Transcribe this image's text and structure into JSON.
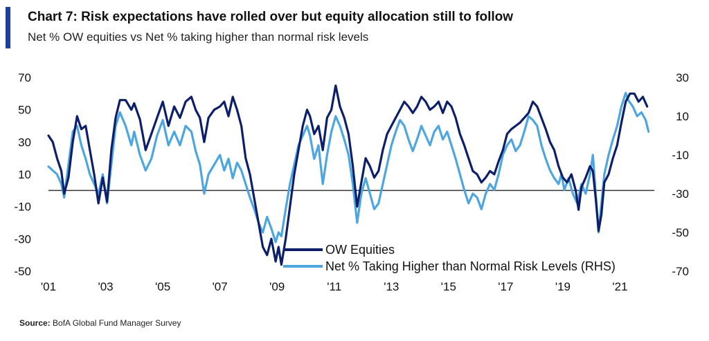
{
  "title": "Chart 7: Risk expectations have rolled over but equity allocation still to follow",
  "subtitle": "Net % OW equities vs Net % taking higher than normal risk levels",
  "source_label": "Source:",
  "source_text": "BofA Global Fund Manager Survey",
  "colors": {
    "accent": "#1f3f9a",
    "ow_equities": "#0d1f6b",
    "risk_levels": "#4da6e0",
    "zero_line": "#333333"
  },
  "chart_data": {
    "type": "line",
    "x_tick_labels": [
      "'01",
      "'03",
      "'05",
      "'07",
      "'09",
      "'11",
      "'13",
      "'15",
      "'17",
      "'19",
      "'21"
    ],
    "x_tick_years": [
      2001,
      2003,
      2005,
      2007,
      2009,
      2011,
      2013,
      2015,
      2017,
      2019,
      2021
    ],
    "xlim": [
      2001,
      2022.2
    ],
    "y_left": {
      "lim": [
        -50,
        70
      ],
      "ticks": [
        70,
        50,
        30,
        10,
        -10,
        -30,
        -50
      ]
    },
    "y_right": {
      "lim": [
        -70,
        30
      ],
      "ticks": [
        30,
        10,
        -10,
        -30,
        -50,
        -70
      ]
    },
    "series": [
      {
        "name": "OW Equities",
        "axis": "left",
        "color": "#0d1f6b",
        "points": [
          [
            2001.0,
            34
          ],
          [
            2001.15,
            30
          ],
          [
            2001.3,
            20
          ],
          [
            2001.45,
            12
          ],
          [
            2001.55,
            -2
          ],
          [
            2001.7,
            8
          ],
          [
            2001.85,
            30
          ],
          [
            2002.0,
            46
          ],
          [
            2002.15,
            38
          ],
          [
            2002.3,
            40
          ],
          [
            2002.45,
            25
          ],
          [
            2002.6,
            10
          ],
          [
            2002.75,
            -8
          ],
          [
            2002.9,
            8
          ],
          [
            2003.05,
            -7
          ],
          [
            2003.2,
            25
          ],
          [
            2003.35,
            45
          ],
          [
            2003.5,
            56
          ],
          [
            2003.7,
            56
          ],
          [
            2003.9,
            50
          ],
          [
            2004.0,
            54
          ],
          [
            2004.2,
            44
          ],
          [
            2004.4,
            25
          ],
          [
            2004.6,
            35
          ],
          [
            2004.8,
            45
          ],
          [
            2005.0,
            55
          ],
          [
            2005.2,
            40
          ],
          [
            2005.4,
            52
          ],
          [
            2005.6,
            45
          ],
          [
            2005.8,
            55
          ],
          [
            2006.0,
            58
          ],
          [
            2006.15,
            50
          ],
          [
            2006.3,
            45
          ],
          [
            2006.45,
            30
          ],
          [
            2006.6,
            45
          ],
          [
            2006.8,
            50
          ],
          [
            2007.0,
            52
          ],
          [
            2007.15,
            55
          ],
          [
            2007.3,
            46
          ],
          [
            2007.45,
            58
          ],
          [
            2007.6,
            50
          ],
          [
            2007.75,
            40
          ],
          [
            2007.9,
            20
          ],
          [
            2008.05,
            10
          ],
          [
            2008.2,
            -5
          ],
          [
            2008.35,
            -20
          ],
          [
            2008.5,
            -35
          ],
          [
            2008.65,
            -40
          ],
          [
            2008.8,
            -30
          ],
          [
            2008.95,
            -44
          ],
          [
            2009.05,
            -35
          ],
          [
            2009.15,
            -46
          ],
          [
            2009.3,
            -30
          ],
          [
            2009.45,
            -10
          ],
          [
            2009.6,
            10
          ],
          [
            2009.75,
            25
          ],
          [
            2009.9,
            40
          ],
          [
            2010.05,
            50
          ],
          [
            2010.15,
            46
          ],
          [
            2010.3,
            35
          ],
          [
            2010.45,
            40
          ],
          [
            2010.6,
            25
          ],
          [
            2010.75,
            45
          ],
          [
            2010.9,
            50
          ],
          [
            2011.05,
            65
          ],
          [
            2011.2,
            52
          ],
          [
            2011.35,
            45
          ],
          [
            2011.5,
            35
          ],
          [
            2011.65,
            15
          ],
          [
            2011.8,
            -10
          ],
          [
            2011.95,
            5
          ],
          [
            2012.1,
            20
          ],
          [
            2012.25,
            15
          ],
          [
            2012.4,
            8
          ],
          [
            2012.55,
            12
          ],
          [
            2012.7,
            25
          ],
          [
            2012.85,
            35
          ],
          [
            2013.0,
            40
          ],
          [
            2013.15,
            45
          ],
          [
            2013.3,
            50
          ],
          [
            2013.45,
            55
          ],
          [
            2013.6,
            52
          ],
          [
            2013.75,
            48
          ],
          [
            2013.9,
            52
          ],
          [
            2014.05,
            58
          ],
          [
            2014.2,
            55
          ],
          [
            2014.35,
            50
          ],
          [
            2014.5,
            52
          ],
          [
            2014.65,
            55
          ],
          [
            2014.8,
            48
          ],
          [
            2014.95,
            55
          ],
          [
            2015.1,
            52
          ],
          [
            2015.25,
            45
          ],
          [
            2015.4,
            35
          ],
          [
            2015.55,
            28
          ],
          [
            2015.7,
            20
          ],
          [
            2015.85,
            12
          ],
          [
            2016.0,
            10
          ],
          [
            2016.15,
            5
          ],
          [
            2016.3,
            8
          ],
          [
            2016.45,
            12
          ],
          [
            2016.6,
            10
          ],
          [
            2016.75,
            18
          ],
          [
            2016.9,
            25
          ],
          [
            2017.05,
            35
          ],
          [
            2017.2,
            38
          ],
          [
            2017.35,
            40
          ],
          [
            2017.5,
            42
          ],
          [
            2017.65,
            45
          ],
          [
            2017.8,
            48
          ],
          [
            2017.95,
            55
          ],
          [
            2018.1,
            52
          ],
          [
            2018.25,
            45
          ],
          [
            2018.4,
            38
          ],
          [
            2018.55,
            30
          ],
          [
            2018.7,
            25
          ],
          [
            2018.85,
            15
          ],
          [
            2019.0,
            8
          ],
          [
            2019.15,
            5
          ],
          [
            2019.3,
            10
          ],
          [
            2019.45,
            0
          ],
          [
            2019.55,
            -12
          ],
          [
            2019.65,
            2
          ],
          [
            2019.8,
            8
          ],
          [
            2019.95,
            15
          ],
          [
            2020.05,
            12
          ],
          [
            2020.15,
            -5
          ],
          [
            2020.25,
            -25
          ],
          [
            2020.35,
            -15
          ],
          [
            2020.45,
            5
          ],
          [
            2020.6,
            10
          ],
          [
            2020.75,
            20
          ],
          [
            2020.9,
            28
          ],
          [
            2021.05,
            42
          ],
          [
            2021.2,
            55
          ],
          [
            2021.35,
            60
          ],
          [
            2021.5,
            60
          ],
          [
            2021.65,
            55
          ],
          [
            2021.8,
            58
          ],
          [
            2021.95,
            52
          ]
        ]
      },
      {
        "name": "Net % Taking Higher than Normal Risk Levels (RHS)",
        "axis": "right",
        "color": "#4da6e0",
        "points": [
          [
            2001.0,
            -16
          ],
          [
            2001.15,
            -18
          ],
          [
            2001.3,
            -20
          ],
          [
            2001.45,
            -25
          ],
          [
            2001.55,
            -32
          ],
          [
            2001.7,
            -15
          ],
          [
            2001.85,
            2
          ],
          [
            2002.0,
            5
          ],
          [
            2002.15,
            -5
          ],
          [
            2002.3,
            -12
          ],
          [
            2002.45,
            -20
          ],
          [
            2002.6,
            -25
          ],
          [
            2002.75,
            -30
          ],
          [
            2002.9,
            -20
          ],
          [
            2003.05,
            -35
          ],
          [
            2003.2,
            -15
          ],
          [
            2003.35,
            5
          ],
          [
            2003.5,
            12
          ],
          [
            2003.7,
            5
          ],
          [
            2003.9,
            -5
          ],
          [
            2004.0,
            2
          ],
          [
            2004.2,
            -10
          ],
          [
            2004.4,
            -18
          ],
          [
            2004.6,
            -12
          ],
          [
            2004.8,
            0
          ],
          [
            2005.0,
            8
          ],
          [
            2005.2,
            -5
          ],
          [
            2005.4,
            2
          ],
          [
            2005.6,
            -5
          ],
          [
            2005.8,
            5
          ],
          [
            2006.0,
            2
          ],
          [
            2006.15,
            -8
          ],
          [
            2006.3,
            -15
          ],
          [
            2006.45,
            -30
          ],
          [
            2006.6,
            -20
          ],
          [
            2006.8,
            -15
          ],
          [
            2007.0,
            -10
          ],
          [
            2007.15,
            -18
          ],
          [
            2007.3,
            -12
          ],
          [
            2007.45,
            -22
          ],
          [
            2007.6,
            -14
          ],
          [
            2007.75,
            -18
          ],
          [
            2007.9,
            -25
          ],
          [
            2008.05,
            -32
          ],
          [
            2008.2,
            -38
          ],
          [
            2008.35,
            -45
          ],
          [
            2008.5,
            -50
          ],
          [
            2008.65,
            -42
          ],
          [
            2008.8,
            -48
          ],
          [
            2008.95,
            -55
          ],
          [
            2009.05,
            -50
          ],
          [
            2009.15,
            -52
          ],
          [
            2009.3,
            -38
          ],
          [
            2009.45,
            -25
          ],
          [
            2009.6,
            -15
          ],
          [
            2009.75,
            -5
          ],
          [
            2009.9,
            0
          ],
          [
            2010.05,
            5
          ],
          [
            2010.15,
            0
          ],
          [
            2010.3,
            -12
          ],
          [
            2010.45,
            -5
          ],
          [
            2010.6,
            -25
          ],
          [
            2010.75,
            -10
          ],
          [
            2010.9,
            2
          ],
          [
            2011.05,
            10
          ],
          [
            2011.2,
            5
          ],
          [
            2011.35,
            -2
          ],
          [
            2011.5,
            -10
          ],
          [
            2011.65,
            -25
          ],
          [
            2011.8,
            -45
          ],
          [
            2011.95,
            -30
          ],
          [
            2012.1,
            -22
          ],
          [
            2012.25,
            -30
          ],
          [
            2012.4,
            -38
          ],
          [
            2012.55,
            -35
          ],
          [
            2012.7,
            -25
          ],
          [
            2012.85,
            -15
          ],
          [
            2013.0,
            -5
          ],
          [
            2013.15,
            2
          ],
          [
            2013.3,
            8
          ],
          [
            2013.45,
            5
          ],
          [
            2013.6,
            -2
          ],
          [
            2013.75,
            -8
          ],
          [
            2013.9,
            -2
          ],
          [
            2014.05,
            5
          ],
          [
            2014.2,
            0
          ],
          [
            2014.35,
            -5
          ],
          [
            2014.5,
            2
          ],
          [
            2014.65,
            5
          ],
          [
            2014.8,
            -2
          ],
          [
            2014.95,
            2
          ],
          [
            2015.1,
            -5
          ],
          [
            2015.25,
            -12
          ],
          [
            2015.4,
            -20
          ],
          [
            2015.55,
            -28
          ],
          [
            2015.7,
            -35
          ],
          [
            2015.85,
            -30
          ],
          [
            2016.0,
            -32
          ],
          [
            2016.15,
            -38
          ],
          [
            2016.3,
            -30
          ],
          [
            2016.45,
            -25
          ],
          [
            2016.6,
            -28
          ],
          [
            2016.75,
            -20
          ],
          [
            2016.9,
            -10
          ],
          [
            2017.05,
            -5
          ],
          [
            2017.2,
            -2
          ],
          [
            2017.35,
            -8
          ],
          [
            2017.5,
            -5
          ],
          [
            2017.65,
            2
          ],
          [
            2017.8,
            10
          ],
          [
            2017.95,
            8
          ],
          [
            2018.1,
            5
          ],
          [
            2018.25,
            -5
          ],
          [
            2018.4,
            -12
          ],
          [
            2018.55,
            -18
          ],
          [
            2018.7,
            -22
          ],
          [
            2018.85,
            -25
          ],
          [
            2018.95,
            -20
          ],
          [
            2019.05,
            -28
          ],
          [
            2019.2,
            -22
          ],
          [
            2019.35,
            -30
          ],
          [
            2019.5,
            -35
          ],
          [
            2019.65,
            -25
          ],
          [
            2019.8,
            -30
          ],
          [
            2019.95,
            -20
          ],
          [
            2020.05,
            -10
          ],
          [
            2020.15,
            -30
          ],
          [
            2020.25,
            -50
          ],
          [
            2020.35,
            -35
          ],
          [
            2020.45,
            -20
          ],
          [
            2020.6,
            -10
          ],
          [
            2020.75,
            -2
          ],
          [
            2020.9,
            5
          ],
          [
            2021.05,
            15
          ],
          [
            2021.2,
            22
          ],
          [
            2021.3,
            18
          ],
          [
            2021.45,
            15
          ],
          [
            2021.6,
            10
          ],
          [
            2021.75,
            12
          ],
          [
            2021.9,
            8
          ],
          [
            2022.0,
            2
          ]
        ]
      }
    ],
    "zero_line": {
      "axis": "left",
      "value": 0
    },
    "legend_placement": "bottom-center",
    "legend": [
      "OW Equities",
      "Net % Taking Higher than Normal Risk Levels (RHS)"
    ]
  }
}
